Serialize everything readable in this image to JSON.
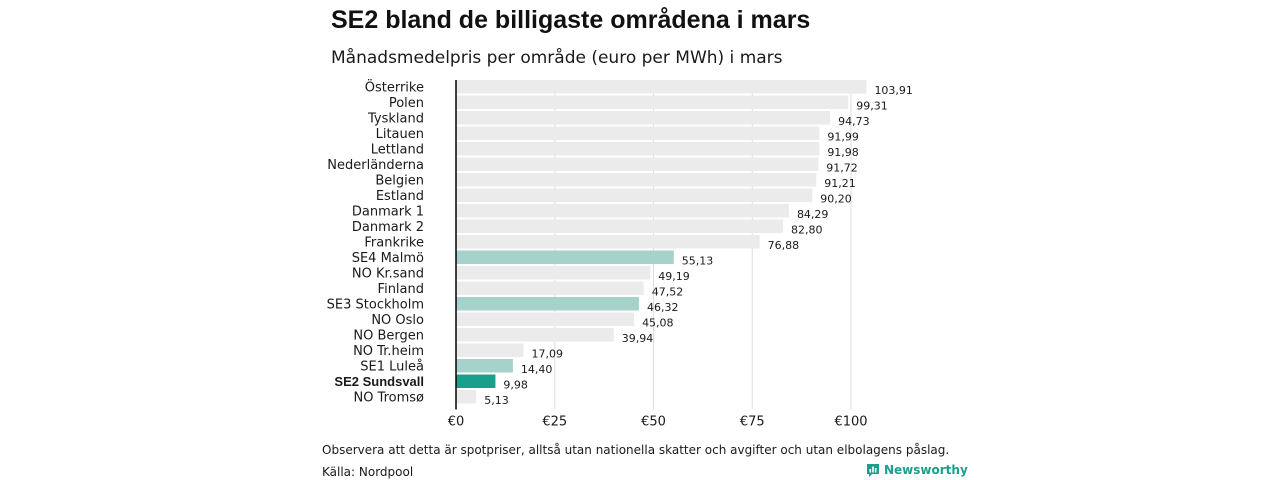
{
  "header": {
    "title": "SE2 bland de billigaste områdena i mars",
    "subtitle": "Månadsmedelpris per område (euro per MWh) i mars"
  },
  "footer": {
    "note": "Observera att detta är spotpriser, alltså utan nationella skatter och avgifter och utan elbolagens påslag.",
    "source": "Källa: Nordpool",
    "brand": "Newsworthy",
    "brand_icon": "bar-chart-logo-icon"
  },
  "colors": {
    "default_bar": "#ebebeb",
    "swedish_bar": "#a5d2cb",
    "highlight_bar": "#1a9f8c",
    "gridline": "#dddddd",
    "axis": "#000000"
  },
  "chart_data": {
    "type": "bar",
    "orientation": "horizontal",
    "title": "SE2 bland de billigaste områdena i mars",
    "subtitle": "Månadsmedelpris per område (euro per MWh) i mars",
    "categories": [
      "Österrike",
      "Polen",
      "Tyskland",
      "Litauen",
      "Lettland",
      "Nederländerna",
      "Belgien",
      "Estland",
      "Danmark  1",
      "Danmark  2",
      "Frankrike",
      "SE4  Malmö",
      "NO Kr.sand",
      "Finland",
      "SE3  Stockholm",
      "NO Oslo",
      "NO Bergen",
      "NO Tr.heim",
      "SE1  Luleå",
      "SE2 Sundsvall",
      "NO Tromsø"
    ],
    "values": [
      103.91,
      99.31,
      94.73,
      91.99,
      91.98,
      91.72,
      91.21,
      90.2,
      84.29,
      82.8,
      76.88,
      55.13,
      49.19,
      47.52,
      46.32,
      45.08,
      39.94,
      17.09,
      14.4,
      9.98,
      5.13
    ],
    "value_labels": [
      "103,91",
      "99,31",
      "94,73",
      "91,99",
      "91,98",
      "91,72",
      "91,21",
      "90,20",
      "84,29",
      "82,80",
      "76,88",
      "55,13",
      "49,19",
      "47,52",
      "46,32",
      "45,08",
      "39,94",
      "17,09",
      "14,40",
      "9,98",
      "5,13"
    ],
    "bar_style": [
      "default",
      "default",
      "default",
      "default",
      "default",
      "default",
      "default",
      "default",
      "default",
      "default",
      "default",
      "swedish",
      "default",
      "default",
      "swedish",
      "default",
      "default",
      "default",
      "swedish",
      "highlight",
      "default"
    ],
    "bold_categories": [
      "SE2 Sundsvall"
    ],
    "xticks": [
      0,
      25,
      50,
      75,
      100
    ],
    "xtick_labels": [
      "€0",
      "€25",
      "€50",
      "€75",
      "€100"
    ],
    "xlim": [
      0,
      105
    ],
    "grid": true,
    "legend": "none"
  }
}
